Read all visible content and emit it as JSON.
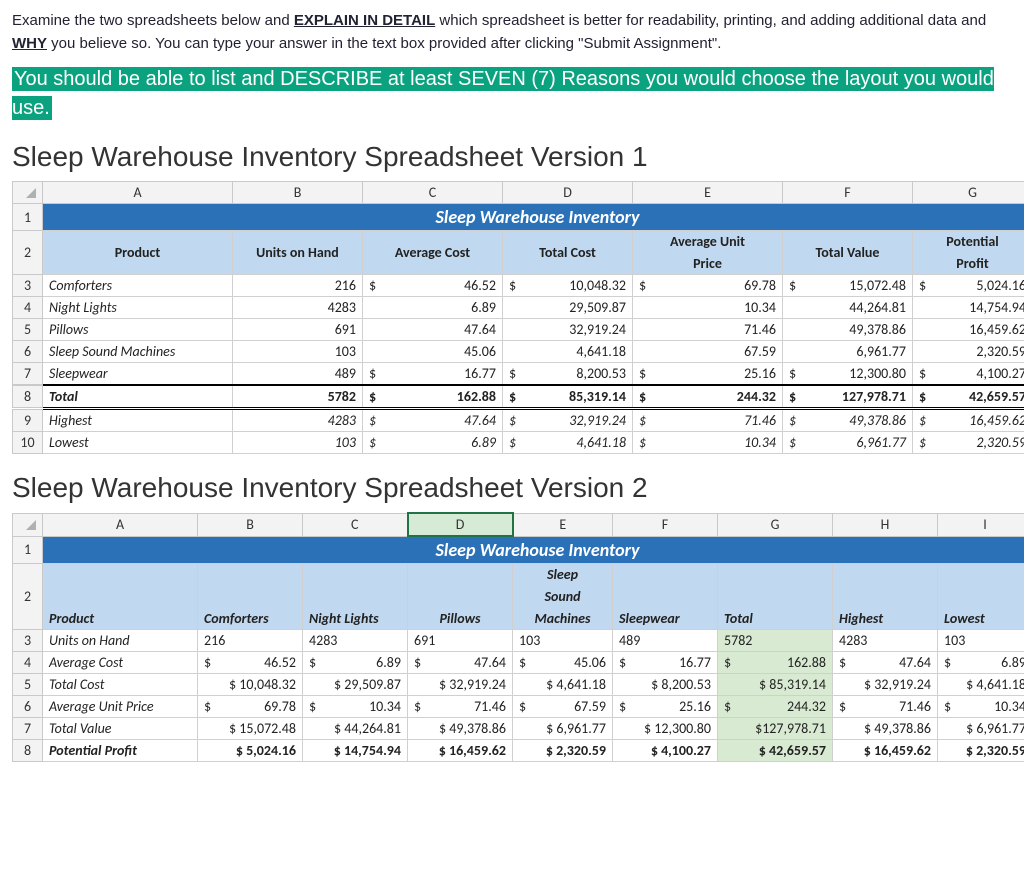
{
  "intro": {
    "line1a": "Examine the two spreadsheets below and ",
    "line1b": "EXPLAIN IN DETAIL",
    "line1c": " which spreadsheet is better for readability, printing, and adding additional data and ",
    "line1d": "WHY",
    "line1e": " you believe so. You can type your answer in the text box provided after clicking \"Submit Assignment\"."
  },
  "highlight": "You should be able to list and DESCRIBE at least SEVEN (7) Reasons you would choose the layout you would use.",
  "h1": "Sleep Warehouse Inventory Spreadsheet Version 1",
  "h2": "Sleep Warehouse Inventory Spreadsheet Version 2",
  "title": "Sleep Warehouse Inventory",
  "v1": {
    "cols": [
      "A",
      "B",
      "C",
      "D",
      "E",
      "F",
      "G"
    ],
    "headers": {
      "product": "Product",
      "units": "Units on Hand",
      "avgcost": "Average Cost",
      "totcost": "Total Cost",
      "avgunit1": "Average Unit",
      "avgunit2": "Price",
      "totval": "Total Value",
      "pot1": "Potential",
      "pot2": "Profit"
    },
    "rows": [
      {
        "r": "3",
        "p": "Comforters",
        "u": "216",
        "ac": "46.52",
        "tc": "10,048.32",
        "aup": "69.78",
        "tv": "15,072.48",
        "pp": "5,024.16",
        "ds": true
      },
      {
        "r": "4",
        "p": "Night Lights",
        "u": "4283",
        "ac": "6.89",
        "tc": "29,509.87",
        "aup": "10.34",
        "tv": "44,264.81",
        "pp": "14,754.94"
      },
      {
        "r": "5",
        "p": "Pillows",
        "u": "691",
        "ac": "47.64",
        "tc": "32,919.24",
        "aup": "71.46",
        "tv": "49,378.86",
        "pp": "16,459.62"
      },
      {
        "r": "6",
        "p": "Sleep Sound Machines",
        "u": "103",
        "ac": "45.06",
        "tc": "4,641.18",
        "aup": "67.59",
        "tv": "6,961.77",
        "pp": "2,320.59"
      },
      {
        "r": "7",
        "p": "Sleepwear",
        "u": "489",
        "ac": "16.77",
        "tc": "8,200.53",
        "aup": "25.16",
        "tv": "12,300.80",
        "pp": "4,100.27",
        "ds": true
      }
    ],
    "total": {
      "r": "8",
      "p": "Total",
      "u": "5782",
      "ac": "162.88",
      "tc": "85,319.14",
      "aup": "244.32",
      "tv": "127,978.71",
      "pp": "42,659.57"
    },
    "highest": {
      "r": "9",
      "p": "Highest",
      "u": "4283",
      "ac": "47.64",
      "tc": "32,919.24",
      "aup": "71.46",
      "tv": "49,378.86",
      "pp": "16,459.62"
    },
    "lowest": {
      "r": "10",
      "p": "Lowest",
      "u": "103",
      "ac": "6.89",
      "tc": "4,641.18",
      "aup": "10.34",
      "tv": "6,961.77",
      "pp": "2,320.59"
    }
  },
  "v2": {
    "cols": [
      "A",
      "B",
      "C",
      "D",
      "E",
      "F",
      "G",
      "H",
      "I"
    ],
    "headers": [
      "Product",
      "Comforters",
      "Night Lights",
      "Pillows",
      "Sleep Sound Machines",
      "Sleepwear",
      "Total",
      "Highest",
      "Lowest"
    ],
    "sleeph1": "Sleep",
    "sleeph2": "Sound",
    "sleeph3": "Machines",
    "rows": [
      {
        "r": "3",
        "l": "Units on Hand",
        "c": [
          "216",
          "4283",
          "691",
          "103",
          "489",
          "5782",
          "4283",
          "103"
        ]
      },
      {
        "r": "4",
        "l": "Average Cost",
        "ds": true,
        "c": [
          "46.52",
          "6.89",
          "47.64",
          "45.06",
          "16.77",
          "162.88",
          "47.64",
          "6.89"
        ]
      },
      {
        "r": "5",
        "l": "Total Cost",
        "c": [
          "$ 10,048.32",
          "$ 29,509.87",
          "$ 32,919.24",
          "$ 4,641.18",
          "$  8,200.53",
          "$  85,319.14",
          "$ 32,919.24",
          "$ 4,641.18"
        ]
      },
      {
        "r": "6",
        "l": "Average Unit Price",
        "ds": true,
        "c": [
          "69.78",
          "10.34",
          "71.46",
          "67.59",
          "25.16",
          "244.32",
          "71.46",
          "10.34"
        ]
      },
      {
        "r": "7",
        "l": "Total Value",
        "c": [
          "$ 15,072.48",
          "$ 44,264.81",
          "$ 49,378.86",
          "$ 6,961.77",
          "$ 12,300.80",
          "$127,978.71",
          "$ 49,378.86",
          "$ 6,961.77"
        ]
      },
      {
        "r": "8",
        "l": "Potential Profit",
        "bold": true,
        "c": [
          "$  5,024.16",
          "$ 14,754.94",
          "$ 16,459.62",
          "$ 2,320.59",
          "$  4,100.27",
          "$  42,659.57",
          "$ 16,459.62",
          "$ 2,320.59"
        ]
      }
    ]
  },
  "colors": {
    "titlebar": "#2a71b8",
    "hdr": "#c1d9f0",
    "green": "#d9ead3",
    "highlight": "#0ba37f"
  }
}
